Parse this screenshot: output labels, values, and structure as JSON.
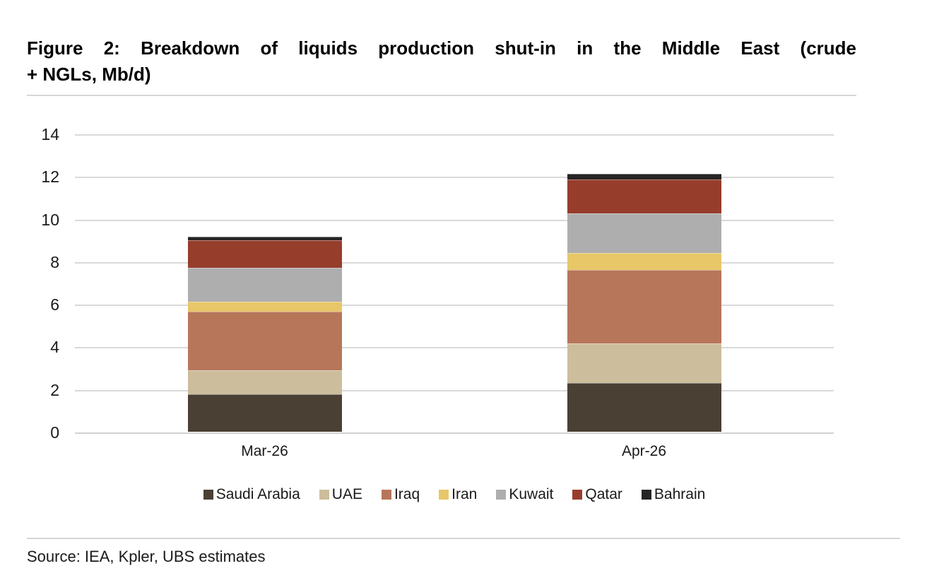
{
  "figure": {
    "title_line1": "Figure 2: Breakdown of liquids production shut-in in the Middle East (crude",
    "title_line2": "+ NGLs, Mb/d)",
    "title_full": "Figure 2: Breakdown of liquids production shut-in in the Middle East (crude + NGLs, Mb/d)",
    "source": "Source: IEA, Kpler, UBS estimates"
  },
  "chart_data": {
    "type": "bar",
    "stacked": true,
    "title": "Breakdown of liquids production shut-in in the Middle East (crude + NGLs, Mb/d)",
    "xlabel": "",
    "ylabel": "Mb/d",
    "categories": [
      "Mar-26",
      "Apr-26"
    ],
    "series": [
      {
        "name": "Saudi Arabia",
        "color": "#4A4033",
        "values": [
          1.75,
          2.3
        ]
      },
      {
        "name": "UAE",
        "color": "#CCBD9C",
        "values": [
          1.15,
          1.85
        ]
      },
      {
        "name": "Iraq",
        "color": "#B77659",
        "values": [
          2.75,
          3.45
        ]
      },
      {
        "name": "Iran",
        "color": "#E7C768",
        "values": [
          0.45,
          0.8
        ]
      },
      {
        "name": "Kuwait",
        "color": "#AFAEAE",
        "values": [
          1.6,
          1.85
        ]
      },
      {
        "name": "Qatar",
        "color": "#973D2C",
        "values": [
          1.3,
          1.6
        ]
      },
      {
        "name": "Bahrain",
        "color": "#262424",
        "values": [
          0.15,
          0.25
        ]
      }
    ],
    "stack_totals": [
      9.15,
      12.1
    ],
    "ylim": [
      0,
      14
    ],
    "yticks": [
      0,
      2,
      4,
      6,
      8,
      10,
      12,
      14
    ],
    "grid": true,
    "gridline_color": "#D9D9D9",
    "legend_position": "bottom"
  }
}
